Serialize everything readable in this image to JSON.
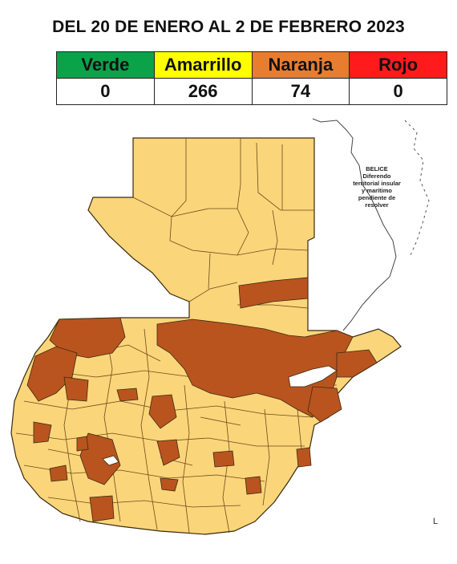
{
  "title": "DEL 20 DE ENERO AL 2 DE FEBRERO 2023",
  "legend": [
    {
      "label": "Verde",
      "count": "0",
      "color": "#0aa34a"
    },
    {
      "label": "Amarrillo",
      "count": "266",
      "color": "#ffff00"
    },
    {
      "label": "Naranja",
      "count": "74",
      "color": "#e87c2f"
    },
    {
      "label": "Rojo",
      "count": "0",
      "color": "#ff1b1b"
    }
  ],
  "map": {
    "fill_amarillo": "#fbd57a",
    "fill_naranja": "#b9541f",
    "border": "#3a2a10",
    "belize_note": "BELICE Diferendo territorial insular y marítimo pendiente de resolver",
    "corner_mark": "L"
  }
}
